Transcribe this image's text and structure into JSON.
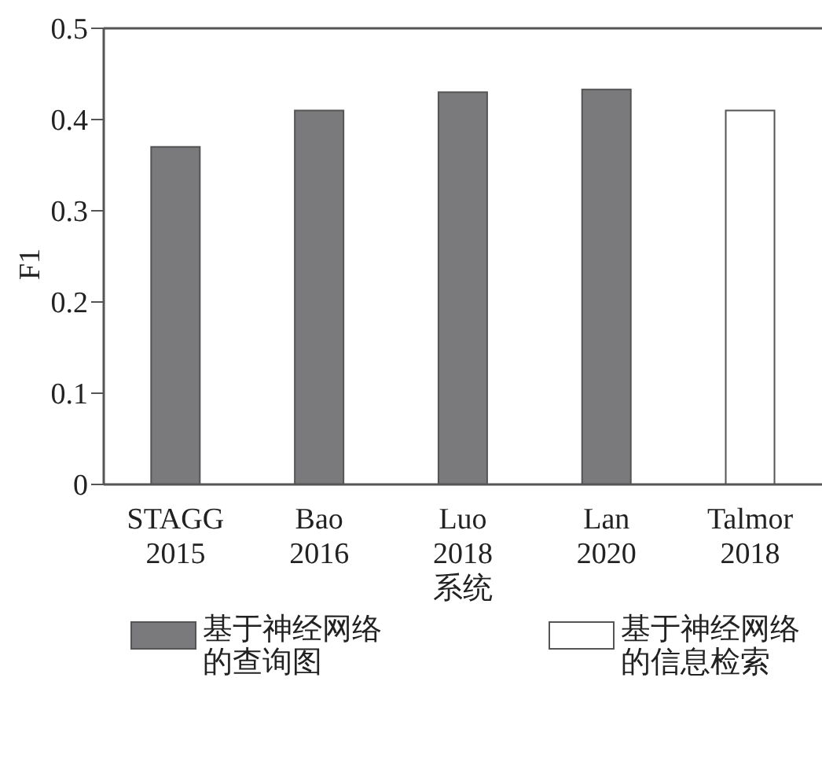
{
  "chart_data": {
    "type": "bar",
    "xlabel": "系统",
    "ylabel": "F1",
    "categories": [
      "STAGG 2015",
      "Bao 2016",
      "Luo 2018",
      "Lan 2020",
      "Talmor 2018"
    ],
    "series": [
      {
        "name": "基于神经网络的查询图",
        "color": "#7a797c",
        "values": [
          0.37,
          0.41,
          0.43,
          0.433,
          null
        ]
      },
      {
        "name": "基于神经网络的信息检索",
        "color": "#ffffff",
        "values": [
          null,
          null,
          null,
          null,
          0.41
        ]
      }
    ],
    "ylim": [
      0,
      0.5
    ],
    "yticks": [
      0,
      0.1,
      0.2,
      0.3,
      0.4,
      0.5
    ],
    "legend": "bottom"
  }
}
